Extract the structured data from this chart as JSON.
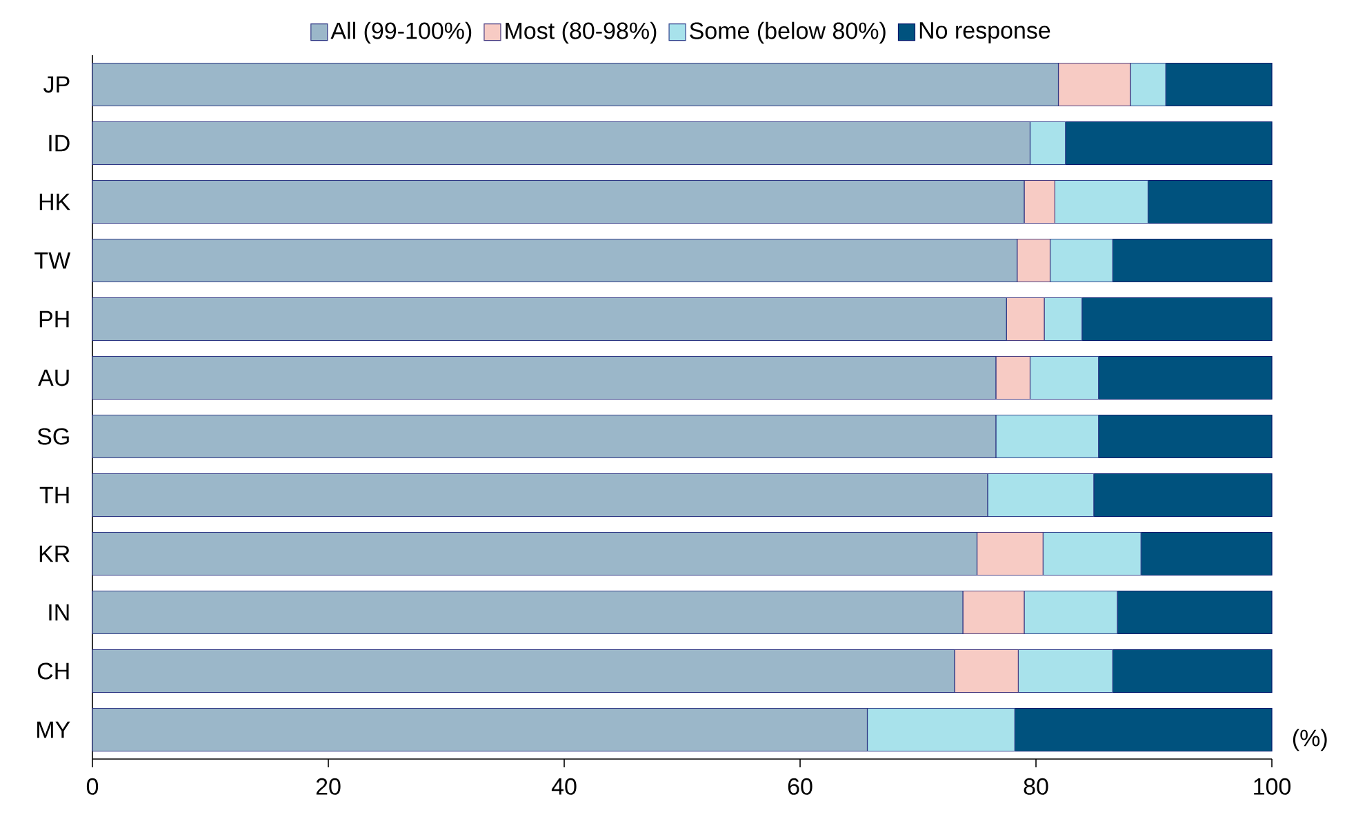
{
  "chart_data": {
    "type": "bar",
    "orientation": "horizontal",
    "stacked": true,
    "legend": "top",
    "categories": [
      "JP",
      "ID",
      "HK",
      "TW",
      "PH",
      "AU",
      "SG",
      "TH",
      "KR",
      "IN",
      "CH",
      "MY"
    ],
    "series": [
      {
        "name": "All (99-100%)",
        "color": "#9bb7c9",
        "values": [
          81.9,
          79.5,
          79.0,
          78.4,
          77.5,
          76.6,
          76.6,
          75.9,
          75.0,
          73.8,
          73.1,
          65.7
        ]
      },
      {
        "name": "Most (80-98%)",
        "color": "#f7cbc4",
        "values": [
          6.1,
          0,
          2.6,
          2.8,
          3.2,
          2.9,
          0,
          0,
          5.6,
          5.2,
          5.4,
          0
        ]
      },
      {
        "name": "Some (below 80%)",
        "color": "#a8e2eb",
        "values": [
          3.0,
          3.0,
          7.9,
          5.3,
          3.2,
          5.8,
          8.7,
          9.0,
          8.3,
          7.9,
          8.0,
          12.5
        ]
      },
      {
        "name": "No response",
        "color": "#00527e",
        "values": [
          9.0,
          17.5,
          10.5,
          13.5,
          16.1,
          14.7,
          14.7,
          15.1,
          11.1,
          13.1,
          13.5,
          21.8
        ]
      }
    ],
    "xlim": [
      0,
      100
    ],
    "xticks": [
      0,
      20,
      40,
      60,
      80,
      100
    ],
    "annotations": [
      "(%)"
    ]
  }
}
